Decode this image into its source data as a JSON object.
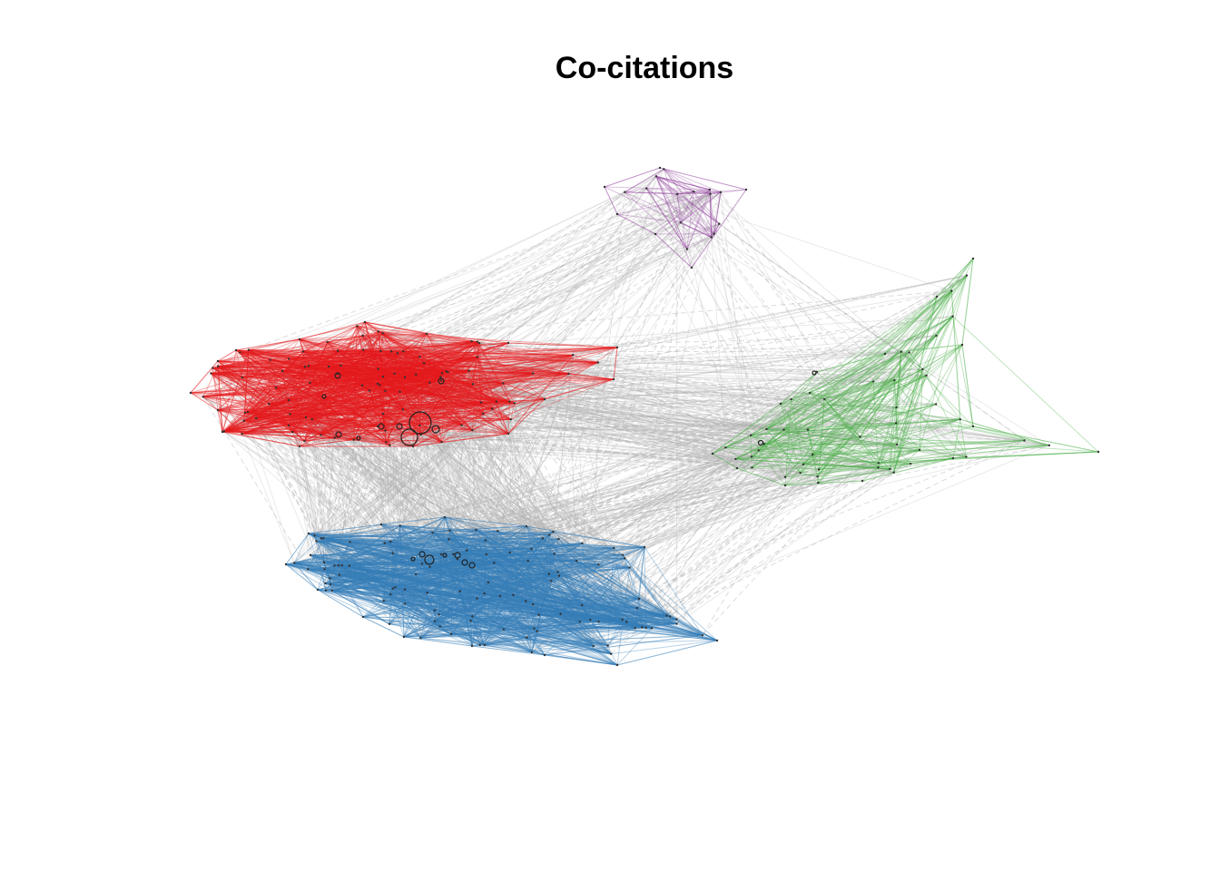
{
  "title": "Co-citations",
  "clusters": [
    {
      "id": "red",
      "color": "#E41A1C"
    },
    {
      "id": "blue",
      "color": "#377EB8"
    },
    {
      "id": "green",
      "color": "#4DAF4A"
    },
    {
      "id": "purple",
      "color": "#984EA3"
    }
  ],
  "inter_cluster_edge_color": "#b3b3b3"
}
